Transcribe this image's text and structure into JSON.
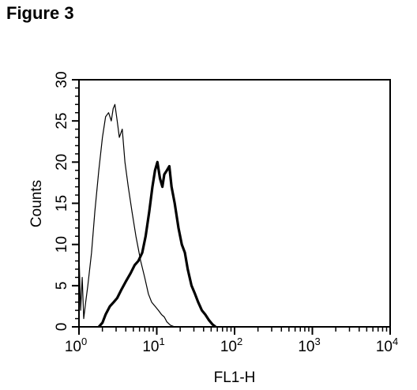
{
  "figure_title": "Figure 3",
  "chart_data": {
    "type": "line",
    "title": "",
    "xlabel": "FL1-H",
    "ylabel": "Counts",
    "x_scale": "log",
    "xlim": [
      1,
      10000
    ],
    "ylim": [
      0,
      30
    ],
    "x_ticks": [
      {
        "base": "10",
        "exp": "0",
        "value": 1
      },
      {
        "base": "10",
        "exp": "1",
        "value": 10
      },
      {
        "base": "10",
        "exp": "2",
        "value": 100
      },
      {
        "base": "10",
        "exp": "3",
        "value": 1000
      },
      {
        "base": "10",
        "exp": "4",
        "value": 10000
      }
    ],
    "y_ticks": [
      "0",
      "5",
      "10",
      "15",
      "20",
      "25",
      "30"
    ],
    "grid": false,
    "series": [
      {
        "style": "thin",
        "points": [
          [
            1.0,
            9
          ],
          [
            1.05,
            2
          ],
          [
            1.1,
            6
          ],
          [
            1.15,
            1
          ],
          [
            1.22,
            3
          ],
          [
            1.3,
            5
          ],
          [
            1.45,
            9
          ],
          [
            1.6,
            14
          ],
          [
            1.8,
            19
          ],
          [
            2.0,
            23
          ],
          [
            2.2,
            25.5
          ],
          [
            2.4,
            26
          ],
          [
            2.6,
            25
          ],
          [
            2.75,
            26.5
          ],
          [
            2.9,
            27
          ],
          [
            3.1,
            25
          ],
          [
            3.3,
            23
          ],
          [
            3.6,
            24
          ],
          [
            3.9,
            20
          ],
          [
            4.3,
            17
          ],
          [
            4.8,
            14
          ],
          [
            5.4,
            11
          ],
          [
            6.2,
            8
          ],
          [
            7.0,
            6
          ],
          [
            7.8,
            4
          ],
          [
            8.6,
            3
          ],
          [
            9.5,
            2.5
          ],
          [
            10.5,
            2
          ],
          [
            11.5,
            1.5
          ],
          [
            12.5,
            1.2
          ],
          [
            13.5,
            0.6
          ],
          [
            15,
            0.2
          ],
          [
            17,
            0
          ]
        ]
      },
      {
        "style": "thick",
        "points": [
          [
            1.8,
            0
          ],
          [
            2.0,
            0.5
          ],
          [
            2.2,
            1.5
          ],
          [
            2.5,
            2.5
          ],
          [
            2.8,
            3
          ],
          [
            3.1,
            3.5
          ],
          [
            3.5,
            4.5
          ],
          [
            4.0,
            5.5
          ],
          [
            4.6,
            6.5
          ],
          [
            5.2,
            7.5
          ],
          [
            5.8,
            8
          ],
          [
            6.5,
            9
          ],
          [
            7.2,
            11
          ],
          [
            8.0,
            14
          ],
          [
            8.8,
            17
          ],
          [
            9.5,
            19
          ],
          [
            10.2,
            20
          ],
          [
            11.0,
            18
          ],
          [
            11.8,
            17
          ],
          [
            12.5,
            18.5
          ],
          [
            13.5,
            19
          ],
          [
            14.5,
            19.5
          ],
          [
            15.5,
            17
          ],
          [
            17,
            15
          ],
          [
            19,
            12
          ],
          [
            21,
            10
          ],
          [
            23,
            9
          ],
          [
            25,
            7
          ],
          [
            28,
            5
          ],
          [
            31,
            4
          ],
          [
            34,
            3
          ],
          [
            38,
            2
          ],
          [
            42,
            1.5
          ],
          [
            47,
            0.8
          ],
          [
            52,
            0.3
          ],
          [
            57,
            0
          ]
        ]
      }
    ]
  }
}
